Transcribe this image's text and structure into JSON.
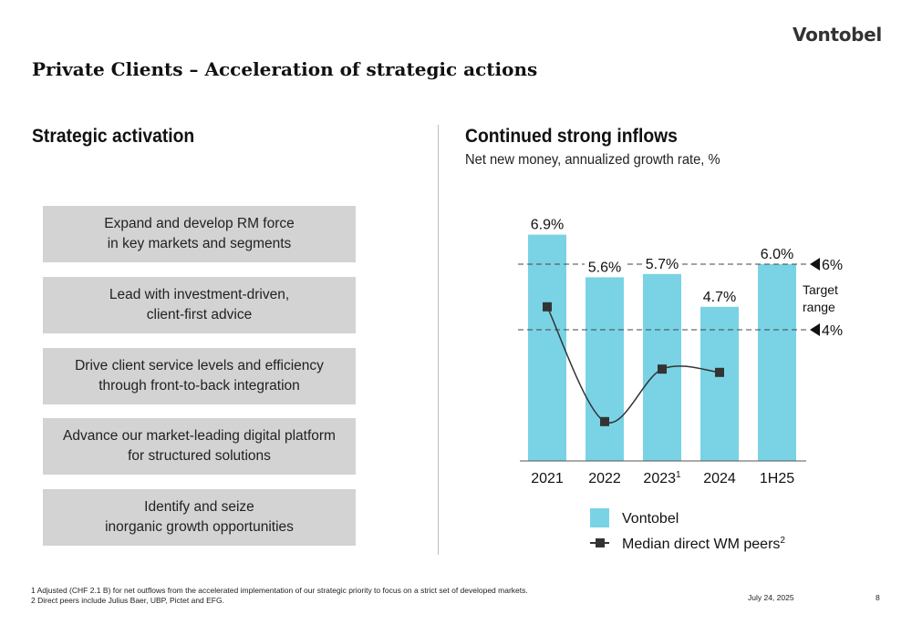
{
  "brand": {
    "logo": "Vontobel"
  },
  "page_title": "Private Clients – Acceleration of strategic actions",
  "left": {
    "title": "Strategic activation",
    "items": [
      "Expand and develop RM force\nin key markets and segments",
      "Lead with investment-driven,\nclient-first advice",
      "Drive client service levels and efficiency\nthrough front-to-back integration",
      "Advance our market-leading digital platform\nfor structured solutions",
      "Identify and seize\ninorganic growth opportunities"
    ]
  },
  "right": {
    "title": "Continued strong inflows",
    "subtitle": "Net new money, annualized growth rate, %"
  },
  "chart_data": {
    "type": "bar",
    "title": "Continued strong inflows",
    "subtitle": "Net new money, annualized growth rate, %",
    "categories": [
      "2021",
      "2022",
      "2023",
      "2024",
      "1H25"
    ],
    "category_superscripts": [
      "",
      "",
      "1",
      "",
      ""
    ],
    "series": [
      {
        "name": "Vontobel",
        "type": "bar",
        "color": "#79d3e5",
        "values": [
          6.9,
          5.6,
          5.7,
          4.7,
          6.0
        ],
        "labels": [
          "6.9%",
          "5.6%",
          "5.7%",
          "4.7%",
          "6.0%"
        ]
      },
      {
        "name": "Median direct WM peers",
        "name_superscript": "2",
        "type": "line",
        "color": "#333333",
        "values": [
          4.7,
          1.2,
          2.8,
          2.7,
          null
        ]
      }
    ],
    "reference_lines": [
      {
        "value": 6,
        "label": "6%"
      },
      {
        "value": 4,
        "label": "4%"
      }
    ],
    "range_label": [
      "Target",
      "range"
    ],
    "ylim": [
      0,
      7.5
    ],
    "xlabel": "",
    "ylabel": "",
    "grid": false,
    "legend": "bottom"
  },
  "footnotes": [
    "1 Adjusted (CHF 2.1 B) for net outflows from the accelerated implementation of our strategic priority to focus on a strict set of developed markets.",
    "2 Direct peers include Julius Baer, UBP, Pictet and EFG."
  ],
  "footer": {
    "date": "July 24, 2025",
    "page": "8"
  }
}
